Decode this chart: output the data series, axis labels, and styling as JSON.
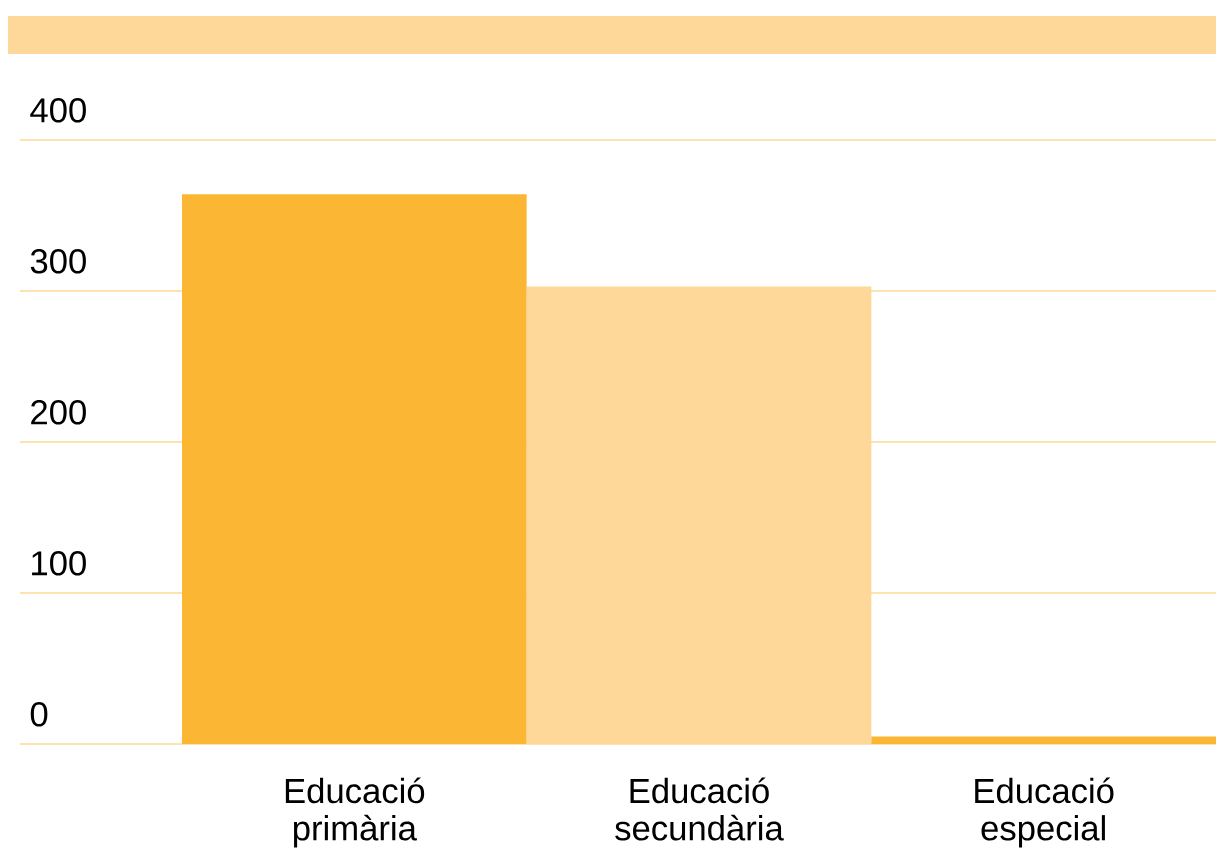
{
  "chart_data": {
    "type": "bar",
    "categories": [
      "Educació primària",
      "Educació secundària",
      "Educació especial"
    ],
    "values": [
      364,
      303,
      5
    ],
    "colors": [
      "#fbb733",
      "#fdd899",
      "#fbb733"
    ],
    "ylim": [
      0,
      400
    ],
    "yticks": [
      0,
      100,
      200,
      300,
      400
    ],
    "grid": "y"
  }
}
